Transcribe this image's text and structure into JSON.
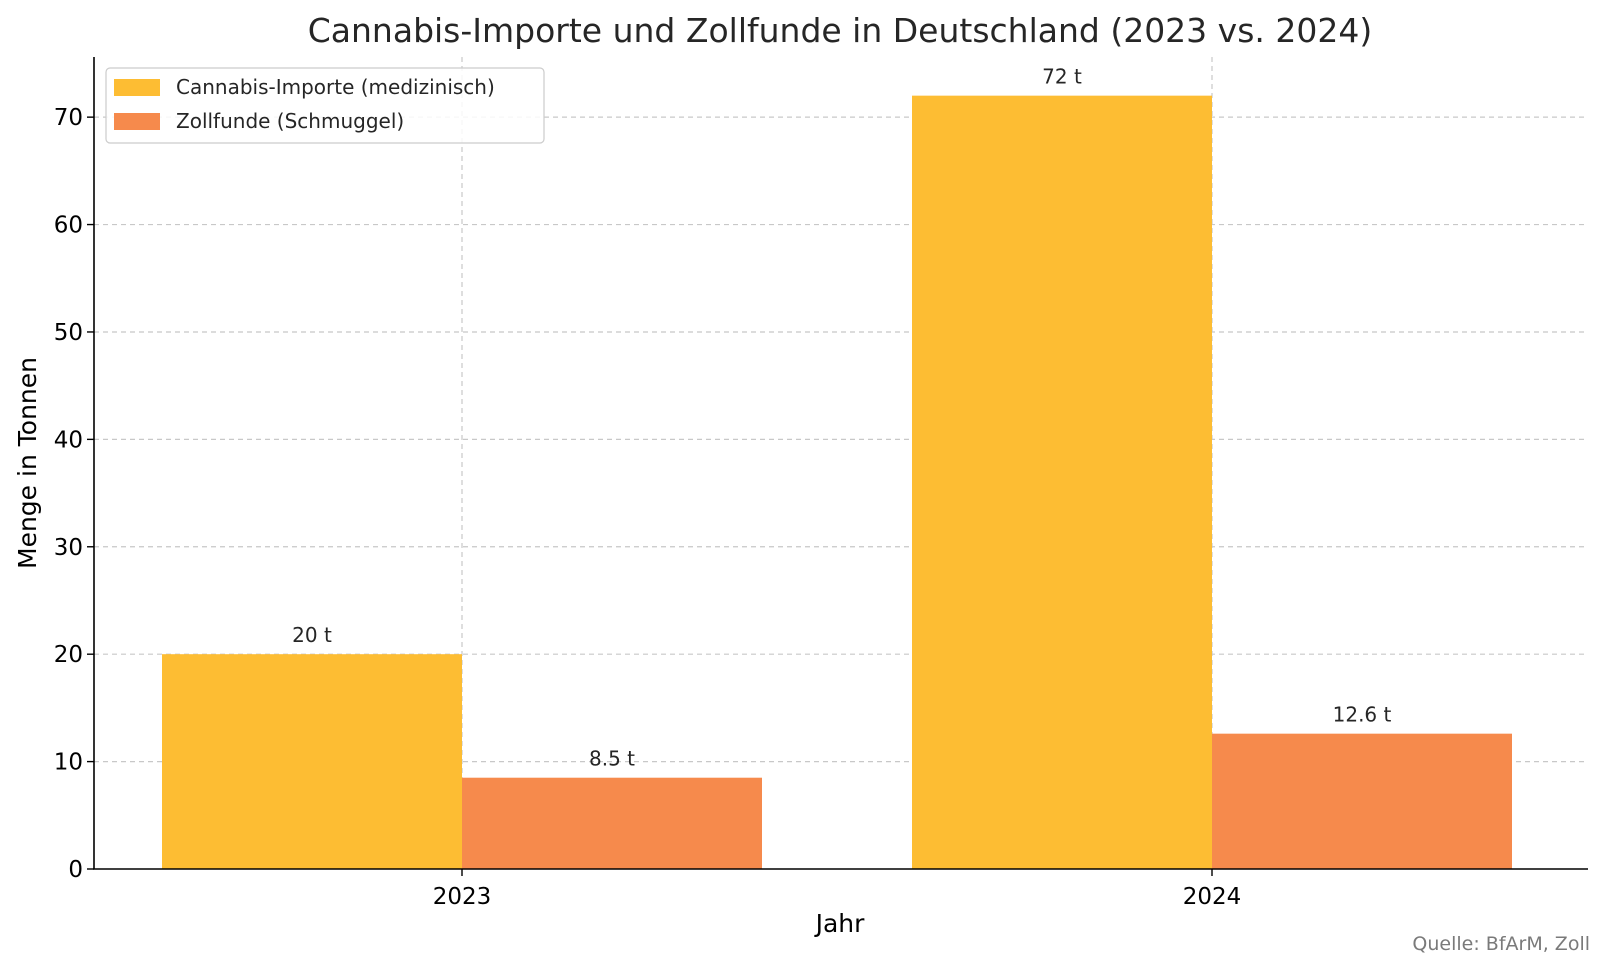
{
  "chart_data": {
    "type": "bar",
    "title": "Cannabis-Importe und Zollfunde in Deutschland (2023 vs. 2024)",
    "xlabel": "Jahr",
    "ylabel": "Menge in Tonnen",
    "categories": [
      "2023",
      "2024"
    ],
    "series": [
      {
        "name": "Cannabis-Importe (medizinisch)",
        "values": [
          20,
          72
        ],
        "labels": [
          "20 t",
          "72 t"
        ],
        "color": "#fdbd33"
      },
      {
        "name": "Zollfunde (Schmuggel)",
        "values": [
          8.5,
          12.6
        ],
        "labels": [
          "8.5 t",
          "12.6 t"
        ],
        "color": "#f68a4c"
      }
    ],
    "ylim": [
      0,
      75.6
    ],
    "yticks": [
      0,
      10,
      20,
      30,
      40,
      50,
      60,
      70
    ],
    "grid": true,
    "legend_position": "top-left",
    "source": "Quelle: BfArM, Zoll"
  }
}
